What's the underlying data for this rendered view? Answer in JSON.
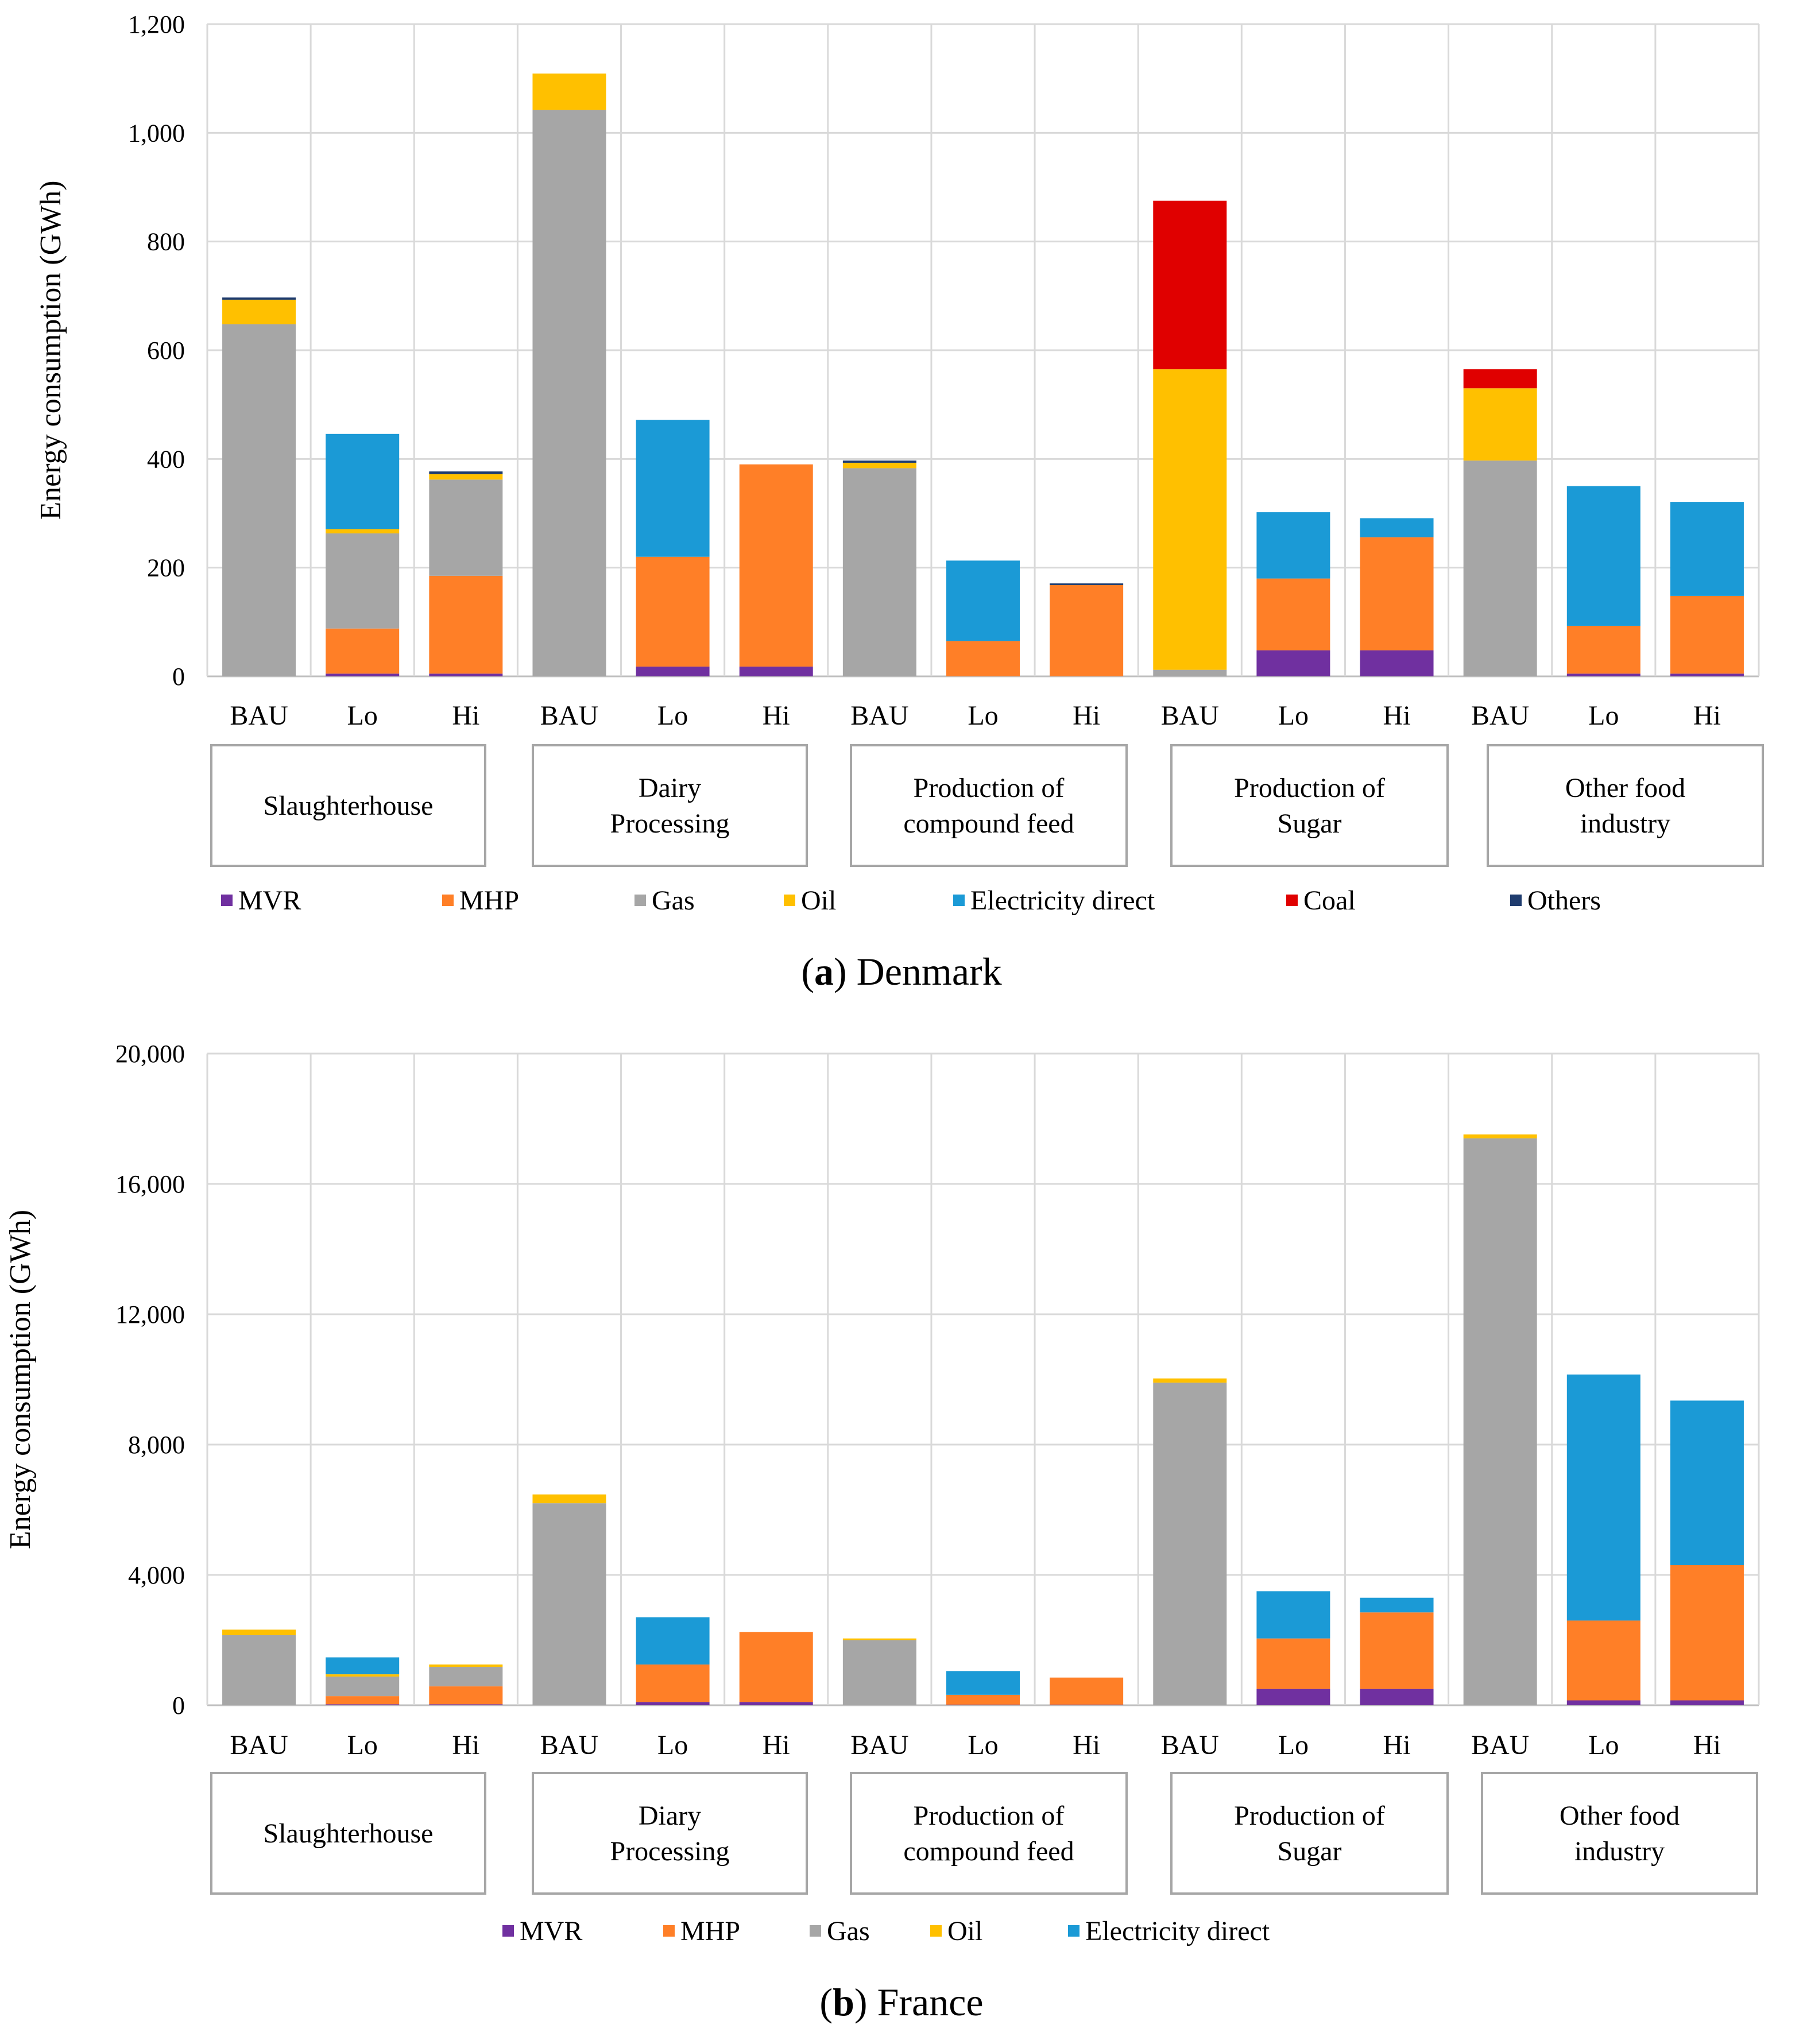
{
  "legend_colors": {
    "MVR": "#7030A0",
    "MHP": "#FF7F27",
    "Gas": "#A6A6A6",
    "Oil": "#FFC000",
    "Electricity direct": "#1B9AD6",
    "Coal": "#E00000",
    "Others": "#1F3C6E"
  },
  "chart_data": [
    {
      "type": "bar",
      "stacked": true,
      "caption_letter": "a",
      "caption_text": " Denmark",
      "ylabel": "Energy consumption (GWh)",
      "ylim": [
        0,
        1200
      ],
      "yticks": [
        0,
        200,
        400,
        600,
        800,
        1000,
        1200
      ],
      "ytick_labels": [
        "0",
        "200",
        "400",
        "600",
        "800",
        "1,000",
        "1,200"
      ],
      "grid": true,
      "categories": [
        "BAU",
        "Lo",
        "Hi",
        "BAU",
        "Lo",
        "Hi",
        "BAU",
        "Lo",
        "Hi",
        "BAU",
        "Lo",
        "Hi",
        "BAU",
        "Lo",
        "Hi"
      ],
      "groups": [
        [
          "Slaughterhouse"
        ],
        [
          "Dairy",
          "Processing"
        ],
        [
          "Production of",
          "compound feed"
        ],
        [
          "Production of",
          "Sugar"
        ],
        [
          "Other food",
          "industry"
        ]
      ],
      "legend": [
        "MVR",
        "MHP",
        "Gas",
        "Oil",
        "Electricity direct",
        "Coal",
        "Others"
      ],
      "series": [
        {
          "name": "MVR",
          "values": [
            0,
            5,
            5,
            0,
            18,
            18,
            0,
            0,
            0,
            0,
            48,
            48,
            0,
            5,
            5
          ]
        },
        {
          "name": "MHP",
          "values": [
            0,
            83,
            180,
            0,
            202,
            372,
            0,
            65,
            168,
            0,
            132,
            208,
            0,
            88,
            143
          ]
        },
        {
          "name": "Gas",
          "values": [
            648,
            175,
            177,
            1042,
            0,
            0,
            383,
            0,
            0,
            12,
            0,
            0,
            397,
            0,
            0
          ]
        },
        {
          "name": "Oil",
          "values": [
            45,
            8,
            10,
            67,
            0,
            0,
            10,
            0,
            0,
            553,
            0,
            0,
            133,
            0,
            0
          ]
        },
        {
          "name": "Electricity direct",
          "values": [
            0,
            175,
            0,
            0,
            252,
            0,
            0,
            148,
            0,
            0,
            122,
            35,
            0,
            257,
            173
          ]
        },
        {
          "name": "Coal",
          "values": [
            0,
            0,
            0,
            0,
            0,
            0,
            0,
            0,
            0,
            310,
            0,
            0,
            35,
            0,
            0
          ]
        },
        {
          "name": "Others",
          "values": [
            4,
            0,
            5,
            0,
            0,
            0,
            4,
            0,
            3,
            0,
            0,
            0,
            0,
            0,
            0
          ]
        }
      ]
    },
    {
      "type": "bar",
      "stacked": true,
      "caption_letter": "b",
      "caption_text": " France",
      "ylabel": "Energy consumption (GWh)",
      "ylim": [
        0,
        20000
      ],
      "yticks": [
        0,
        4000,
        8000,
        12000,
        16000,
        20000
      ],
      "ytick_labels": [
        "0",
        "4,000",
        "8,000",
        "12,000",
        "16,000",
        "20,000"
      ],
      "grid": true,
      "categories": [
        "BAU",
        "Lo",
        "Hi",
        "BAU",
        "Lo",
        "Hi",
        "BAU",
        "Lo",
        "Hi",
        "BAU",
        "Lo",
        "Hi",
        "BAU",
        "Lo",
        "Hi"
      ],
      "groups": [
        [
          "Slaughterhouse"
        ],
        [
          "Diary",
          "Processing"
        ],
        [
          "Production of",
          "compound feed"
        ],
        [
          "Production of",
          "Sugar"
        ],
        [
          "Other food",
          "industry"
        ]
      ],
      "legend": [
        "MVR",
        "MHP",
        "Gas",
        "Oil",
        "Electricity direct"
      ],
      "series": [
        {
          "name": "MVR",
          "values": [
            0,
            30,
            30,
            0,
            100,
            100,
            0,
            20,
            20,
            0,
            500,
            500,
            0,
            150,
            150
          ]
        },
        {
          "name": "MHP",
          "values": [
            0,
            250,
            550,
            0,
            1150,
            2150,
            0,
            300,
            830,
            0,
            1550,
            2350,
            0,
            2450,
            4150
          ]
        },
        {
          "name": "Gas",
          "values": [
            2150,
            600,
            600,
            6200,
            0,
            0,
            2000,
            0,
            0,
            9900,
            0,
            0,
            17400,
            0,
            0
          ]
        },
        {
          "name": "Oil",
          "values": [
            170,
            70,
            70,
            270,
            0,
            0,
            50,
            0,
            0,
            130,
            0,
            0,
            120,
            0,
            0
          ]
        },
        {
          "name": "Electricity direct",
          "values": [
            0,
            520,
            0,
            0,
            1450,
            0,
            0,
            730,
            0,
            0,
            1450,
            450,
            0,
            7550,
            5050
          ]
        }
      ]
    }
  ]
}
